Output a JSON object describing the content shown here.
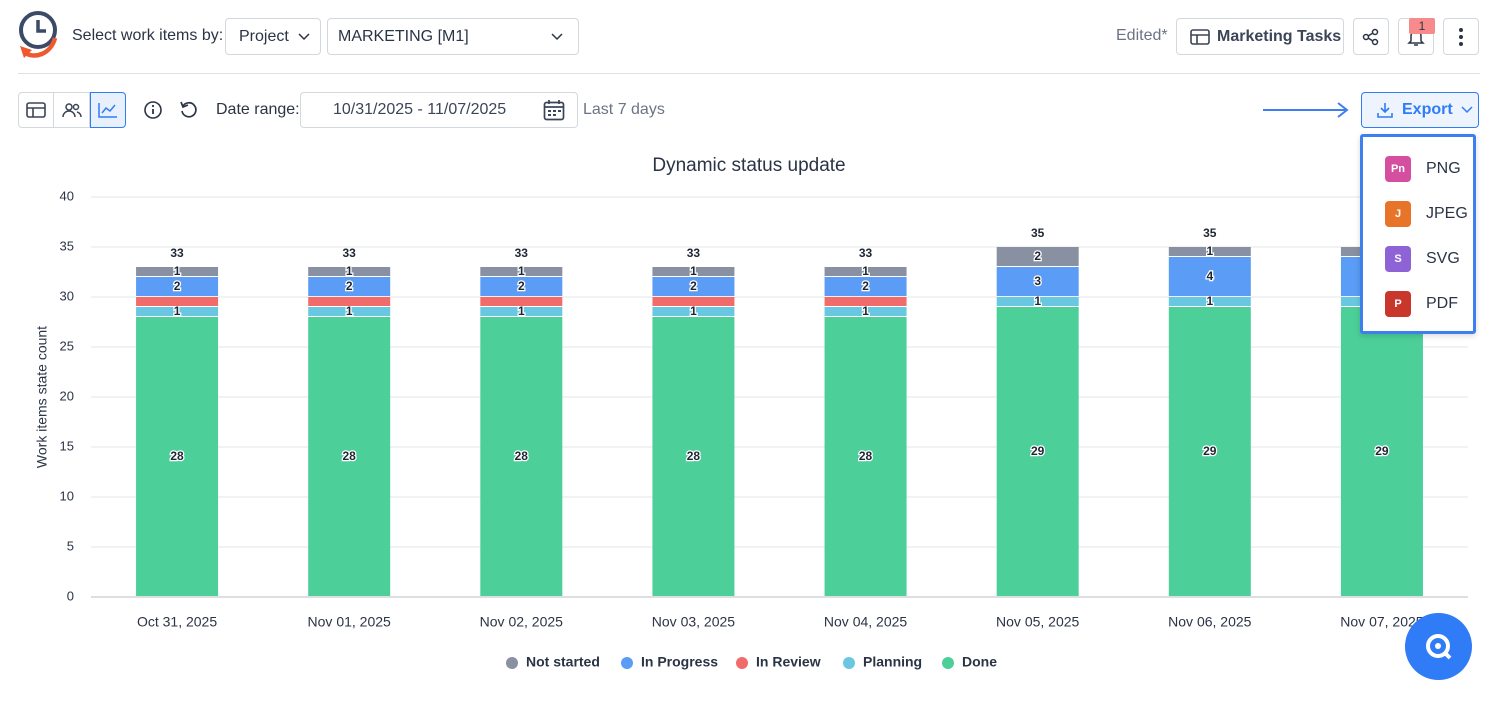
{
  "header": {
    "select_label": "Select work items by:",
    "group_dropdown": "Project",
    "project_dropdown": "MARKETING [M1]",
    "edited": "Edited*",
    "view_button": "Marketing Tasks",
    "notification_count": "1"
  },
  "toolbar": {
    "date_range_label": "Date range:",
    "date_range_value": "10/31/2025 - 11/07/2025",
    "date_range_hint": "Last 7 days",
    "export_button": "Export"
  },
  "export_menu": [
    {
      "icon": "Pn",
      "label": "PNG",
      "color": "#d44fa0"
    },
    {
      "icon": "J",
      "label": "JPEG",
      "color": "#e8742a"
    },
    {
      "icon": "S",
      "label": "SVG",
      "color": "#8d63d6"
    },
    {
      "icon": "P",
      "label": "PDF",
      "color": "#c9372c"
    }
  ],
  "chart_data": {
    "type": "stacked_bar",
    "title": "Dynamic status update",
    "y_label": "Work items state count",
    "categories": [
      "Oct 31, 2025",
      "Nov 01, 2025",
      "Nov 02, 2025",
      "Nov 03, 2025",
      "Nov 04, 2025",
      "Nov 05, 2025",
      "Nov 06, 2025",
      "Nov 07, 2025"
    ],
    "series": [
      {
        "name": "Not started",
        "color": "#8990a1",
        "values": [
          1,
          1,
          1,
          1,
          1,
          2,
          1,
          1
        ]
      },
      {
        "name": "In Progress",
        "color": "#5b9cf6",
        "values": [
          2,
          2,
          2,
          2,
          2,
          3,
          4,
          4
        ]
      },
      {
        "name": "In Review",
        "color": "#f26b6b",
        "values": [
          1,
          1,
          1,
          1,
          1,
          0,
          0,
          0
        ],
        "labels": false
      },
      {
        "name": "Planning",
        "color": "#6ac7e2",
        "values": [
          1,
          1,
          1,
          1,
          1,
          1,
          1,
          1
        ]
      },
      {
        "name": "Done",
        "color": "#4ccf98",
        "values": [
          28,
          28,
          28,
          28,
          28,
          29,
          29,
          29
        ]
      }
    ],
    "totals": [
      33,
      33,
      33,
      33,
      33,
      35,
      35,
      35
    ],
    "ylim": [
      0,
      40
    ],
    "yticks": [
      0,
      5,
      10,
      15,
      20,
      25,
      30,
      35,
      40
    ],
    "grid": true,
    "legend": "bottom"
  }
}
